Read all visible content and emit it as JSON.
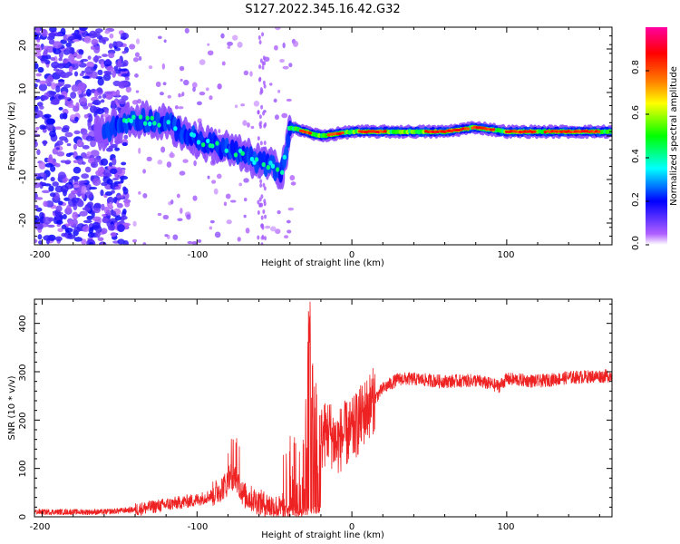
{
  "figure": {
    "title": "S127.2022.345.16.42.G32"
  },
  "chart_data": [
    {
      "type": "heatmap",
      "xlabel": "Height of straight line (km)",
      "ylabel": "Frequency (Hz)",
      "xlim": [
        -205,
        168
      ],
      "ylim": [
        -25,
        25
      ],
      "x_ticks": [
        -200,
        -100,
        0,
        100
      ],
      "y_ticks": [
        20,
        10,
        0,
        -10,
        -20
      ],
      "colorbar": {
        "label": "Normalized spectral amplitude",
        "range": [
          0,
          1
        ],
        "ticks": [
          "0.0",
          "0.2",
          "0.4",
          "0.6",
          "0.8"
        ],
        "colors": [
          "#ffffff",
          "#b060ff",
          "#0000ff",
          "#00ffff",
          "#00ff00",
          "#ffff00",
          "#ff8000",
          "#ff0000",
          "#ff00a0"
        ]
      },
      "ridge": {
        "x": [
          -160,
          -140,
          -120,
          -100,
          -80,
          -60,
          -45,
          -40,
          -30,
          -20,
          0,
          20,
          60,
          80,
          100,
          120,
          168
        ],
        "frequency_hz": [
          1,
          4,
          3,
          -1,
          -3,
          -6,
          -8,
          2,
          1,
          0,
          1,
          1,
          1,
          2,
          1,
          1,
          1
        ]
      }
    },
    {
      "type": "line",
      "xlabel": "Height of straight line (km)",
      "ylabel": "SNR (10 * v/v)",
      "xlim": [
        -205,
        168
      ],
      "ylim": [
        0,
        450
      ],
      "x_ticks": [
        -200,
        -100,
        0,
        100
      ],
      "y_ticks": [
        0,
        100,
        200,
        300,
        400
      ],
      "series": [
        {
          "color": "#ee2222",
          "x": [
            -205,
            -180,
            -160,
            -140,
            -120,
            -100,
            -90,
            -80,
            -75,
            -70,
            -60,
            -50,
            -45,
            -40,
            -35,
            -30,
            -27,
            -25,
            -20,
            -15,
            -10,
            -5,
            0,
            10,
            20,
            30,
            40,
            50,
            60,
            80,
            95,
            100,
            120,
            140,
            168
          ],
          "y": [
            10,
            10,
            10,
            15,
            25,
            35,
            45,
            70,
            85,
            45,
            30,
            20,
            15,
            80,
            40,
            120,
            440,
            200,
            160,
            180,
            150,
            170,
            175,
            225,
            265,
            285,
            285,
            282,
            280,
            282,
            270,
            285,
            280,
            288,
            292
          ]
        }
      ]
    }
  ]
}
